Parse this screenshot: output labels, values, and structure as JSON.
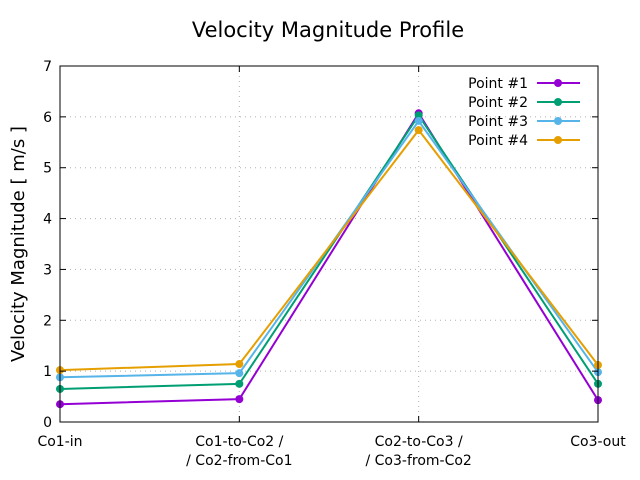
{
  "chart_data": {
    "type": "line",
    "title": "Velocity Magnitude Profile",
    "xlabel": "",
    "ylabel": "Velocity Magnitude [ m/s ]",
    "ylim": [
      0,
      7
    ],
    "yticks": [
      "0",
      "1",
      "2",
      "3",
      "4",
      "5",
      "6",
      "7"
    ],
    "grid": true,
    "legend_position": "top-right",
    "categories": [
      [
        "Co1-in"
      ],
      [
        "Co1-to-Co2 /",
        "/ Co2-from-Co1"
      ],
      [
        "Co2-to-Co3 /",
        "/ Co3-from-Co2"
      ],
      [
        "Co3-out"
      ]
    ],
    "series": [
      {
        "name": "Point #1",
        "color": "#9400d3",
        "values": [
          0.35,
          0.45,
          6.07,
          0.43
        ]
      },
      {
        "name": "Point #2",
        "color": "#009e73",
        "values": [
          0.65,
          0.75,
          6.03,
          0.75
        ]
      },
      {
        "name": "Point #3",
        "color": "#56b4e9",
        "values": [
          0.88,
          0.96,
          5.92,
          0.98
        ]
      },
      {
        "name": "Point #4",
        "color": "#e69f00",
        "values": [
          1.02,
          1.14,
          5.74,
          1.12
        ]
      }
    ]
  }
}
